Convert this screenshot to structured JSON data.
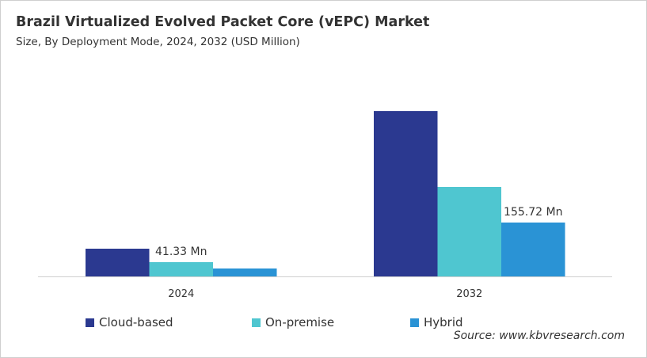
{
  "header": {
    "title": "Brazil Virtualized Evolved Packet Core (vEPC) Market",
    "subtitle": "Size, By Deployment Mode, 2024, 2032 (USD Million)"
  },
  "source": "Source: www.kbvresearch.com",
  "chart_data": {
    "type": "bar",
    "title": "Brazil Virtualized Evolved Packet Core (vEPC) Market",
    "subtitle": "Size, By Deployment Mode, 2024, 2032 (USD Million)",
    "categories": [
      "2024",
      "2032"
    ],
    "series": [
      {
        "name": "Cloud-based",
        "color": "#2b3990",
        "values": [
          80.1,
          478.0
        ]
      },
      {
        "name": "On-premise",
        "color": "#4fc6d0",
        "values": [
          41.33,
          258.6
        ]
      },
      {
        "name": "Hybrid",
        "color": "#2a93d5",
        "values": [
          22.9,
          155.72
        ]
      }
    ],
    "data_labels": [
      {
        "series": "On-premise",
        "category": "2024",
        "text": "41.33 Mn"
      },
      {
        "series": "Hybrid",
        "category": "2032",
        "text": "155.72 Mn"
      }
    ],
    "ylim": [
      0,
      500
    ],
    "y_axis_visible": false,
    "grid": false,
    "legend": "bottom"
  }
}
